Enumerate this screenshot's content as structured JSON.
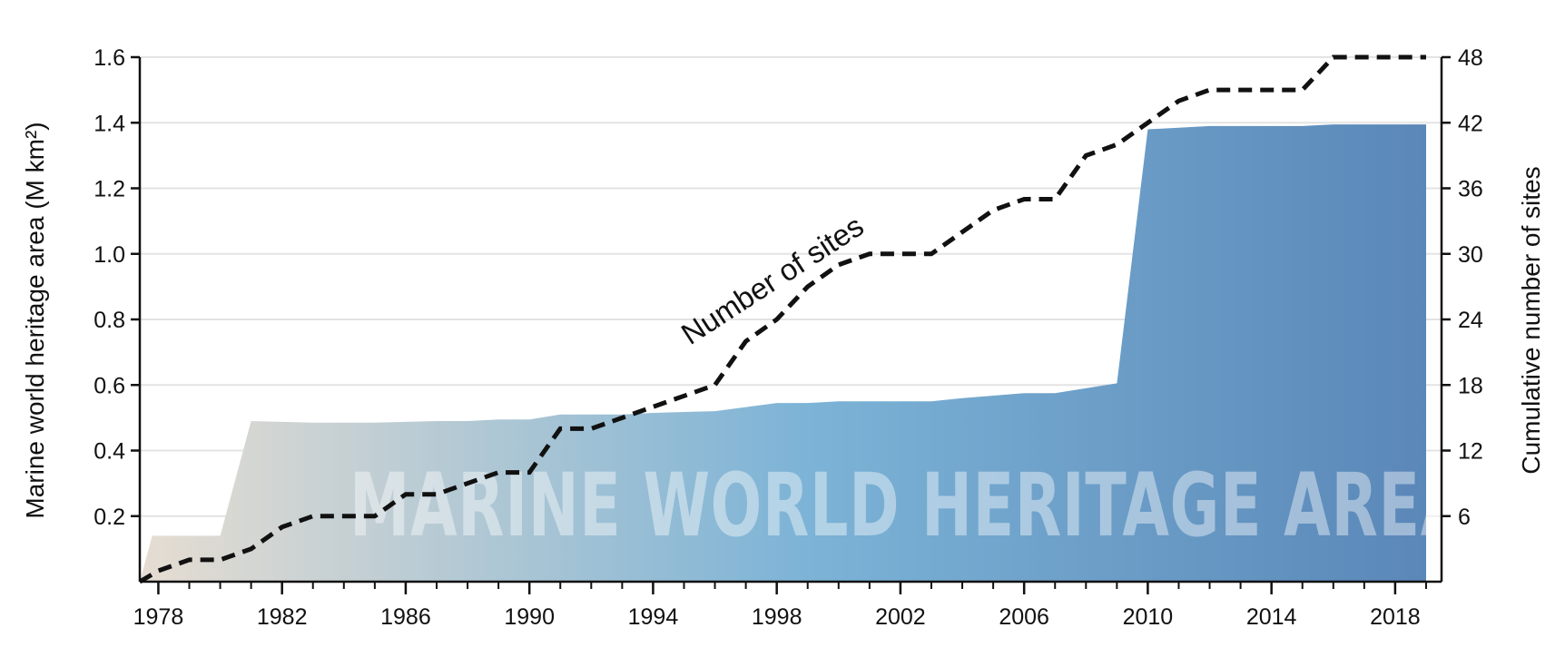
{
  "chart_data": {
    "type": "area",
    "x_ticks": [
      1978,
      1982,
      1986,
      1990,
      1994,
      1998,
      2002,
      2006,
      2010,
      2014,
      2018
    ],
    "xlim": [
      1977.4,
      2019.5
    ],
    "y_left": {
      "label": "Marine world heritage area (M km²)",
      "ylim": [
        0,
        1.6
      ],
      "ticks": [
        0.2,
        0.4,
        0.6,
        0.8,
        1.0,
        1.2,
        1.4,
        1.6
      ],
      "tick_labels": [
        "0.2",
        "0.4",
        "0.6",
        "0.8",
        "1.0",
        "1.2",
        "1.4",
        "1.6"
      ]
    },
    "y_right": {
      "label": "Cumulative number of sites",
      "ylim": [
        0,
        48
      ],
      "ticks": [
        6,
        12,
        18,
        24,
        30,
        36,
        42,
        48
      ],
      "tick_labels": [
        "6",
        "12",
        "18",
        "24",
        "30",
        "36",
        "42",
        "48"
      ]
    },
    "grid": true,
    "series": [
      {
        "type": "area",
        "axis": "left",
        "x": [
          1977.4,
          1977.8,
          1980.0,
          1981.0,
          1983.0,
          1985.0,
          1987.0,
          1988.0,
          1989.0,
          1990.0,
          1991.0,
          1993.0,
          1994.0,
          1996.0,
          1998.0,
          1999.0,
          2000.0,
          2003.0,
          2004.0,
          2006.0,
          2007.0,
          2009.0,
          2010.0,
          2011.0,
          2012.0,
          2015.0,
          2016.0,
          2019.0
        ],
        "values": [
          0.0,
          0.14,
          0.14,
          0.49,
          0.485,
          0.485,
          0.49,
          0.49,
          0.495,
          0.495,
          0.51,
          0.51,
          0.515,
          0.52,
          0.545,
          0.545,
          0.55,
          0.55,
          0.56,
          0.575,
          0.575,
          0.605,
          1.38,
          1.385,
          1.39,
          1.39,
          1.395,
          1.395
        ]
      },
      {
        "type": "line",
        "axis": "right",
        "style": "dashed",
        "x": [
          1977.4,
          1978.0,
          1979.0,
          1980.0,
          1981.0,
          1982.0,
          1983.0,
          1984.0,
          1985.0,
          1986.0,
          1987.0,
          1988.0,
          1989.0,
          1990.0,
          1991.0,
          1992.0,
          1993.0,
          1994.0,
          1995.0,
          1996.0,
          1997.0,
          1998.0,
          1999.0,
          2000.0,
          2001.0,
          2002.0,
          2003.0,
          2004.0,
          2005.0,
          2006.0,
          2007.0,
          2008.0,
          2009.0,
          2010.0,
          2011.0,
          2012.0,
          2013.0,
          2014.0,
          2015.0,
          2016.0,
          2017.0,
          2018.0,
          2019.0
        ],
        "values": [
          0,
          1,
          2,
          2,
          3,
          5,
          6,
          6,
          6,
          8,
          8,
          9,
          10,
          10,
          14,
          14,
          15,
          16,
          17,
          18,
          22,
          24,
          27,
          29,
          30,
          30,
          30,
          32,
          34,
          35,
          35,
          39,
          40,
          42,
          44,
          45,
          45,
          45,
          45,
          48,
          48,
          48,
          48
        ]
      }
    ],
    "annotations": [
      {
        "text": "Number of sites"
      },
      {
        "text": "MARINE WORLD HERITAGE AREA"
      }
    ],
    "colors": {
      "area_start": "#e6ddd2",
      "area_mid": "#7cb3d6",
      "area_end": "#5a87b8",
      "line": "#111111",
      "grid": "#e3e3e3"
    }
  }
}
